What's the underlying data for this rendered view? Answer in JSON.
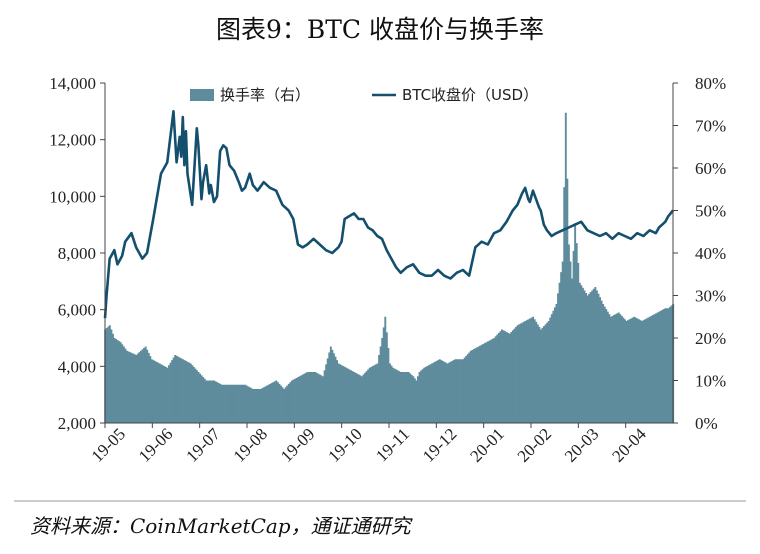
{
  "title": "图表9：BTC 收盘价与换手率",
  "source": "资料来源：CoinMarketCap，通证通研究",
  "chart_data": {
    "type": "line",
    "title": "图表9：BTC 收盘价与换手率",
    "x_ticks": [
      "19-05",
      "19-06",
      "19-07",
      "19-08",
      "19-09",
      "19-10",
      "19-11",
      "19-12",
      "20-01",
      "20-02",
      "20-03",
      "20-04"
    ],
    "left_axis": {
      "ticks": [
        "2,000",
        "4,000",
        "6,000",
        "8,000",
        "10,000",
        "12,000",
        "14,000"
      ],
      "range": [
        2000,
        14000
      ]
    },
    "right_axis": {
      "ticks": [
        "0%",
        "10%",
        "20%",
        "30%",
        "40%",
        "50%",
        "60%",
        "70%",
        "80%"
      ],
      "range": [
        0,
        80
      ]
    },
    "legend_position": "top-center",
    "grid": false,
    "colors": {
      "turnover": "#5f8c9d",
      "price": "#14506e"
    },
    "series": [
      {
        "name": "换手率（右）",
        "type": "area",
        "axis": "right",
        "unit": "%",
        "x": [
          0,
          3,
          6,
          10,
          14,
          20,
          26,
          30,
          35,
          40,
          45,
          50,
          55,
          60,
          65,
          70,
          75,
          80,
          85,
          90,
          95,
          100,
          105,
          110,
          115,
          120,
          125,
          130,
          135,
          140,
          145,
          150,
          155,
          160,
          165,
          170,
          175,
          178,
          180,
          183,
          185,
          190,
          195,
          198,
          200,
          202,
          205,
          210,
          215,
          220,
          225,
          230,
          235,
          240,
          245,
          250,
          255,
          260,
          265,
          270,
          275,
          280,
          285,
          290,
          294,
          296,
          298,
          300,
          302,
          305,
          310,
          315,
          320,
          325,
          330,
          335,
          340,
          345,
          350,
          355,
          360,
          362,
          365
        ],
        "y": [
          22,
          23,
          20,
          19,
          17,
          16,
          18,
          15,
          14,
          13,
          16,
          15,
          14,
          12,
          10,
          10,
          9,
          9,
          9,
          9,
          8,
          8,
          9,
          10,
          8,
          10,
          11,
          12,
          12,
          11,
          18,
          14,
          13,
          12,
          11,
          13,
          14,
          20,
          25,
          14,
          13,
          12,
          12,
          11,
          10,
          12,
          13,
          14,
          15,
          14,
          15,
          15,
          17,
          18,
          19,
          20,
          22,
          21,
          23,
          24,
          25,
          22,
          24,
          28,
          38,
          73,
          42,
          34,
          47,
          33,
          30,
          32,
          28,
          25,
          26,
          24,
          25,
          24,
          25,
          26,
          27,
          27,
          28
        ]
      },
      {
        "name": "BTC收盘价（USD）",
        "type": "line",
        "axis": "left",
        "unit": "USD",
        "x": [
          0,
          1,
          3,
          6,
          8,
          11,
          13,
          17,
          20,
          24,
          27,
          31,
          36,
          40,
          44,
          46,
          48,
          49,
          50,
          51,
          52,
          53,
          56,
          59,
          60,
          62,
          63,
          65,
          66,
          67,
          68,
          70,
          72,
          74,
          76,
          78,
          80,
          83,
          86,
          88,
          90,
          93,
          95,
          98,
          102,
          106,
          110,
          114,
          118,
          121,
          124,
          127,
          130,
          134,
          138,
          142,
          146,
          150,
          152,
          154,
          157,
          160,
          163,
          166,
          169,
          172,
          175,
          178,
          181,
          184,
          187,
          190,
          194,
          198,
          202,
          206,
          210,
          214,
          218,
          222,
          226,
          230,
          234,
          238,
          242,
          246,
          250,
          254,
          258,
          262,
          265,
          268,
          270,
          272,
          273,
          275,
          277,
          279,
          280,
          282,
          284,
          287,
          290,
          294,
          298,
          302,
          306,
          310,
          314,
          318,
          322,
          326,
          330,
          334,
          338,
          342,
          346,
          350,
          354,
          356,
          358,
          360,
          362,
          365
        ],
        "y": [
          5700,
          6500,
          7800,
          8100,
          7600,
          7900,
          8400,
          8700,
          8200,
          7800,
          8000,
          9200,
          10800,
          11200,
          13000,
          11200,
          12100,
          11400,
          12800,
          11100,
          12300,
          10800,
          9700,
          12400,
          11800,
          9900,
          10500,
          11100,
          10600,
          10100,
          10400,
          9800,
          10000,
          11600,
          11800,
          11700,
          11100,
          10900,
          10500,
          10200,
          10300,
          10800,
          10400,
          10200,
          10500,
          10300,
          10200,
          9700,
          9500,
          9200,
          8300,
          8200,
          8300,
          8500,
          8300,
          8100,
          8000,
          8200,
          8400,
          9200,
          9300,
          9400,
          9200,
          9200,
          8900,
          8800,
          8600,
          8500,
          8100,
          7800,
          7500,
          7300,
          7500,
          7600,
          7300,
          7200,
          7200,
          7400,
          7200,
          7100,
          7300,
          7400,
          7200,
          8200,
          8400,
          8300,
          8700,
          8800,
          9100,
          9500,
          9700,
          10100,
          10300,
          9900,
          9800,
          10200,
          9900,
          9600,
          9500,
          9000,
          8800,
          8600,
          8700,
          8800,
          8900,
          9000,
          9100,
          8800,
          8700,
          8600,
          8700,
          8500,
          8700,
          8600,
          8500,
          8700,
          8600,
          8800,
          8700,
          8900,
          9000,
          9100,
          9300,
          9500
        ]
      }
    ]
  }
}
